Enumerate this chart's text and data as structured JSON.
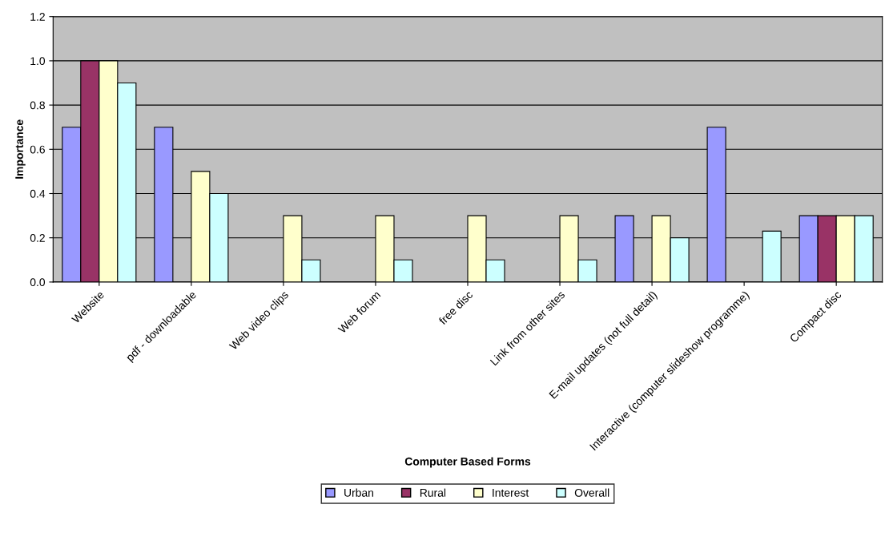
{
  "chart_data": {
    "type": "bar",
    "xlabel": "Computer Based Forms",
    "ylabel": "Importance",
    "categories": [
      "Website",
      "pdf - downloadable",
      "Web video clips",
      "Web forum",
      "free disc",
      "Link from other sites",
      "E-mail updates (not full detail)",
      "Interactive (computer slideshow programme)",
      "Compact disc"
    ],
    "series": [
      {
        "name": "Urban",
        "color": "#9999ff",
        "values": [
          0.7,
          0.7,
          null,
          null,
          null,
          null,
          0.3,
          0.7,
          0.3
        ]
      },
      {
        "name": "Rural",
        "color": "#993366",
        "values": [
          1.0,
          null,
          null,
          null,
          null,
          null,
          null,
          null,
          0.3
        ]
      },
      {
        "name": "Interest",
        "color": "#ffffcc",
        "values": [
          1.0,
          0.5,
          0.3,
          0.3,
          0.3,
          0.3,
          0.3,
          null,
          0.3
        ]
      },
      {
        "name": "Overall",
        "color": "#ccffff",
        "values": [
          0.9,
          0.4,
          0.1,
          0.1,
          0.1,
          0.1,
          0.2,
          0.23,
          0.3
        ]
      }
    ],
    "ylim": [
      0,
      1.2
    ],
    "yticks": [
      {
        "value": 0,
        "label": "0.0"
      },
      {
        "value": 0.2,
        "label": "0.2"
      },
      {
        "value": 0.4,
        "label": "0.4"
      },
      {
        "value": 0.6,
        "label": "0.6"
      },
      {
        "value": 0.8,
        "label": "0.8"
      },
      {
        "value": 1.0,
        "label": "1.0"
      },
      {
        "value": 1.2,
        "label": "1.2"
      }
    ],
    "grid": "y",
    "legend": "bottom"
  }
}
